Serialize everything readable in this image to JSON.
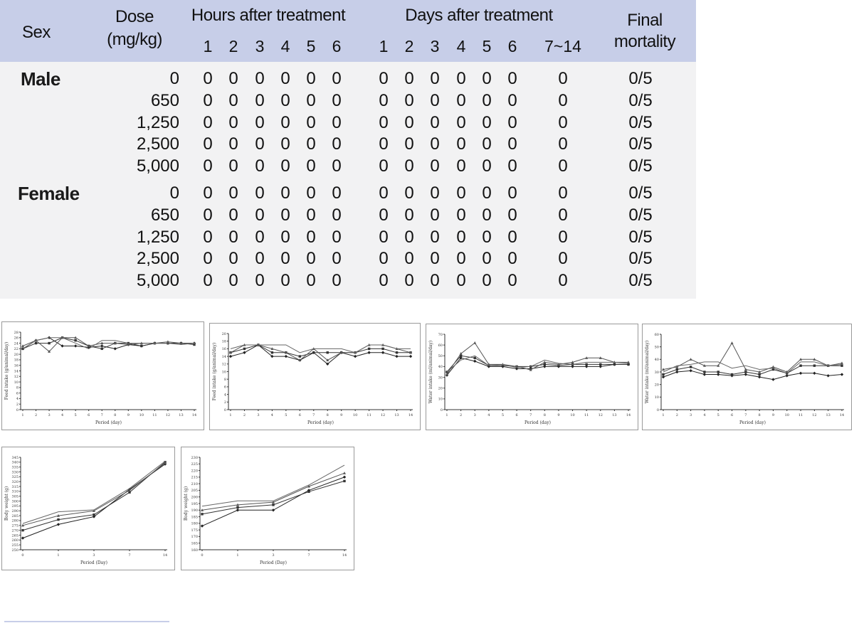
{
  "table": {
    "headers": {
      "sex": "Sex",
      "dose_line1": "Dose",
      "dose_line2": "(mg/kg)",
      "hours_group": "Hours after treatment",
      "hours": [
        "1",
        "2",
        "3",
        "4",
        "5",
        "6"
      ],
      "days_group": "Days after treatment",
      "days": [
        "1",
        "2",
        "3",
        "4",
        "5",
        "6",
        "7~14"
      ],
      "final_line1": "Final",
      "final_line2": "mortality"
    },
    "groups": [
      {
        "sex": "Male",
        "rows": [
          {
            "dose": "0",
            "hours": [
              "0",
              "0",
              "0",
              "0",
              "0",
              "0"
            ],
            "days": [
              "0",
              "0",
              "0",
              "0",
              "0",
              "0",
              "0"
            ],
            "final": "0/5"
          },
          {
            "dose": "650",
            "hours": [
              "0",
              "0",
              "0",
              "0",
              "0",
              "0"
            ],
            "days": [
              "0",
              "0",
              "0",
              "0",
              "0",
              "0",
              "0"
            ],
            "final": "0/5"
          },
          {
            "dose": "1,250",
            "hours": [
              "0",
              "0",
              "0",
              "0",
              "0",
              "0"
            ],
            "days": [
              "0",
              "0",
              "0",
              "0",
              "0",
              "0",
              "0"
            ],
            "final": "0/5"
          },
          {
            "dose": "2,500",
            "hours": [
              "0",
              "0",
              "0",
              "0",
              "0",
              "0"
            ],
            "days": [
              "0",
              "0",
              "0",
              "0",
              "0",
              "0",
              "0"
            ],
            "final": "0/5"
          },
          {
            "dose": "5,000",
            "hours": [
              "0",
              "0",
              "0",
              "0",
              "0",
              "0"
            ],
            "days": [
              "0",
              "0",
              "0",
              "0",
              "0",
              "0",
              "0"
            ],
            "final": "0/5"
          }
        ]
      },
      {
        "sex": "Female",
        "rows": [
          {
            "dose": "0",
            "hours": [
              "0",
              "0",
              "0",
              "0",
              "0",
              "0"
            ],
            "days": [
              "0",
              "0",
              "0",
              "0",
              "0",
              "0",
              "0"
            ],
            "final": "0/5"
          },
          {
            "dose": "650",
            "hours": [
              "0",
              "0",
              "0",
              "0",
              "0",
              "0"
            ],
            "days": [
              "0",
              "0",
              "0",
              "0",
              "0",
              "0",
              "0"
            ],
            "final": "0/5"
          },
          {
            "dose": "1,250",
            "hours": [
              "0",
              "0",
              "0",
              "0",
              "0",
              "0"
            ],
            "days": [
              "0",
              "0",
              "0",
              "0",
              "0",
              "0",
              "0"
            ],
            "final": "0/5"
          },
          {
            "dose": "2,500",
            "hours": [
              "0",
              "0",
              "0",
              "0",
              "0",
              "0"
            ],
            "days": [
              "0",
              "0",
              "0",
              "0",
              "0",
              "0",
              "0"
            ],
            "final": "0/5"
          },
          {
            "dose": "5,000",
            "hours": [
              "0",
              "0",
              "0",
              "0",
              "0",
              "0"
            ],
            "days": [
              "0",
              "0",
              "0",
              "0",
              "0",
              "0",
              "0"
            ],
            "final": "0/5"
          }
        ]
      }
    ]
  },
  "chart_data": [
    {
      "type": "line",
      "xlabel": "Period (day)",
      "ylabel": "Feed intake (g/animal/day)",
      "x": [
        1,
        2,
        3,
        4,
        5,
        6,
        7,
        8,
        9,
        10,
        11,
        12,
        13,
        14
      ],
      "x_ticks": [
        "1",
        "2",
        "3",
        "4",
        "5",
        "6",
        "7",
        "8",
        "9",
        "10",
        "11",
        "12",
        "13",
        "14"
      ],
      "y_ticks": [
        "0",
        "2",
        "4",
        "6",
        "8",
        "10",
        "12",
        "14",
        "16",
        "18",
        "20",
        "22",
        "24",
        "26",
        "28"
      ],
      "ylim": [
        0,
        28
      ],
      "series": [
        {
          "values": [
            22,
            25,
            26,
            23,
            23,
            22.5,
            23,
            22,
            23.5,
            23,
            24,
            24,
            24,
            24
          ]
        },
        {
          "values": [
            22,
            24,
            24,
            26,
            25,
            23,
            22,
            24,
            24,
            23,
            24,
            24,
            24,
            23.5
          ]
        },
        {
          "values": [
            23,
            25,
            21,
            26,
            26,
            23,
            24,
            24,
            23.5,
            24,
            24,
            24.5,
            24,
            24
          ]
        },
        {
          "values": [
            22,
            25,
            26,
            26,
            24,
            22,
            25,
            25,
            24,
            24,
            24,
            24,
            23.5,
            24
          ]
        }
      ]
    },
    {
      "type": "line",
      "xlabel": "Period (day)",
      "ylabel": "Feed intake (g/animal/day)",
      "x": [
        1,
        2,
        3,
        4,
        5,
        6,
        7,
        8,
        9,
        10,
        11,
        12,
        13,
        14
      ],
      "x_ticks": [
        "1",
        "2",
        "3",
        "4",
        "5",
        "6",
        "7",
        "8",
        "9",
        "10",
        "11",
        "12",
        "13",
        "14"
      ],
      "y_ticks": [
        "0",
        "2",
        "4",
        "6",
        "8",
        "10",
        "12",
        "14",
        "16",
        "18",
        "20"
      ],
      "ylim": [
        0,
        20
      ],
      "series": [
        {
          "values": [
            14,
            15,
            17,
            14,
            14,
            13,
            15,
            12,
            15,
            14,
            15,
            15,
            14,
            14
          ]
        },
        {
          "values": [
            15,
            16,
            17,
            15,
            15,
            14,
            15,
            15,
            15,
            15,
            16,
            16,
            15,
            15
          ]
        },
        {
          "values": [
            15,
            17,
            17,
            16,
            15,
            13,
            16,
            13,
            15,
            15,
            17,
            17,
            16,
            15
          ]
        },
        {
          "values": [
            16,
            17,
            17,
            17,
            17,
            15,
            16,
            16,
            16,
            15,
            17,
            17,
            16,
            16
          ]
        }
      ]
    },
    {
      "type": "line",
      "xlabel": "Period (day)",
      "ylabel": "Water intake (ml/animal/day)",
      "x": [
        1,
        2,
        3,
        4,
        5,
        6,
        7,
        8,
        9,
        10,
        11,
        12,
        13,
        14
      ],
      "x_ticks": [
        "1",
        "2",
        "3",
        "4",
        "5",
        "6",
        "7",
        "8",
        "9",
        "10",
        "11",
        "12",
        "13",
        "14"
      ],
      "y_ticks": [
        "0",
        "10",
        "20",
        "30",
        "40",
        "50",
        "60",
        "70"
      ],
      "ylim": [
        0,
        70
      ],
      "series": [
        {
          "values": [
            32,
            48,
            45,
            40,
            40,
            38,
            38,
            40,
            40,
            40,
            40,
            40,
            42,
            42
          ]
        },
        {
          "values": [
            35,
            50,
            48,
            41,
            41,
            40,
            40,
            42,
            41,
            42,
            42,
            42,
            42,
            42
          ]
        },
        {
          "values": [
            33,
            52,
            62,
            42,
            42,
            40,
            37,
            44,
            42,
            44,
            48,
            48,
            44,
            44
          ]
        },
        {
          "values": [
            35,
            46,
            50,
            41,
            42,
            39,
            40,
            46,
            43,
            42,
            44,
            44,
            44,
            43
          ]
        }
      ]
    },
    {
      "type": "line",
      "xlabel": "Period (day)",
      "ylabel": "Water intake (ml/animal/day)",
      "x": [
        1,
        2,
        3,
        4,
        5,
        6,
        7,
        8,
        9,
        10,
        11,
        12,
        13,
        14
      ],
      "x_ticks": [
        "1",
        "2",
        "3",
        "4",
        "5",
        "6",
        "7",
        "8",
        "9",
        "10",
        "11",
        "12",
        "13",
        "14"
      ],
      "y_ticks": [
        "0",
        "10",
        "20",
        "30",
        "40",
        "50",
        "60"
      ],
      "ylim": [
        0,
        60
      ],
      "series": [
        {
          "values": [
            26,
            30,
            31,
            28,
            28,
            27,
            28,
            26,
            24,
            27,
            29,
            29,
            27,
            28
          ]
        },
        {
          "values": [
            28,
            32,
            34,
            30,
            30,
            28,
            30,
            28,
            32,
            29,
            35,
            35,
            35,
            35
          ]
        },
        {
          "values": [
            32,
            34,
            40,
            35,
            35,
            53,
            32,
            30,
            34,
            30,
            40,
            40,
            35,
            37
          ]
        },
        {
          "values": [
            30,
            35,
            36,
            38,
            38,
            33,
            35,
            32,
            33,
            29,
            38,
            38,
            35,
            36
          ]
        }
      ]
    },
    {
      "type": "line",
      "xlabel": "Period (Day)",
      "ylabel": "Body weight (g)",
      "x": [
        "0",
        "1",
        "3",
        "7",
        "14"
      ],
      "x_ticks": [
        "0",
        "1",
        "3",
        "7",
        "14"
      ],
      "y_ticks": [
        "250",
        "255",
        "260",
        "265",
        "270",
        "275",
        "280",
        "285",
        "290",
        "295",
        "300",
        "305",
        "310",
        "315",
        "320",
        "325",
        "330",
        "335",
        "340",
        "345"
      ],
      "ylim": [
        250,
        345
      ],
      "series": [
        {
          "values": [
            262,
            276,
            284,
            312,
            338
          ]
        },
        {
          "values": [
            270,
            281,
            286,
            309,
            340
          ]
        },
        {
          "values": [
            275,
            285,
            290,
            311,
            339
          ]
        },
        {
          "values": [
            277,
            289,
            291,
            313,
            341
          ]
        }
      ]
    },
    {
      "type": "line",
      "xlabel": "Period (Day)",
      "ylabel": "Body weight (g)",
      "x": [
        "0",
        "1",
        "3",
        "7",
        "14"
      ],
      "x_ticks": [
        "0",
        "1",
        "3",
        "7",
        "14"
      ],
      "y_ticks": [
        "160",
        "165",
        "170",
        "175",
        "180",
        "185",
        "190",
        "195",
        "200",
        "205",
        "210",
        "215",
        "220",
        "225",
        "230"
      ],
      "ylim": [
        160,
        230
      ],
      "series": [
        {
          "values": [
            178,
            190,
            190,
            205,
            215
          ]
        },
        {
          "values": [
            187,
            192,
            194,
            204,
            212
          ]
        },
        {
          "values": [
            190,
            194,
            196,
            208,
            218
          ]
        },
        {
          "values": [
            193,
            197,
            197,
            209,
            224
          ]
        }
      ]
    }
  ]
}
